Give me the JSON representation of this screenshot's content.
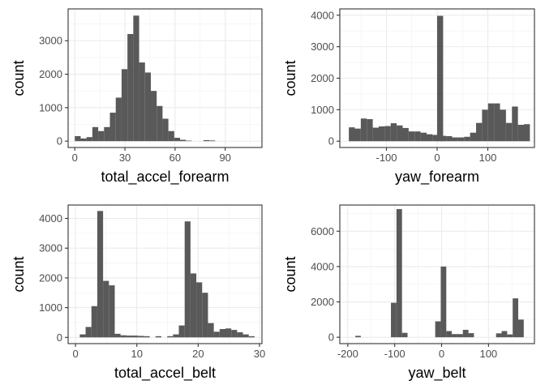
{
  "chart_data": [
    {
      "type": "bar",
      "xlabel": "total_accel_forearm",
      "ylabel": "count",
      "xlim": [
        -4,
        112
      ],
      "ylim": [
        -190,
        3950
      ],
      "xticks": [
        0,
        30,
        60,
        90
      ],
      "xtick_labels": [
        "0",
        "30",
        "60",
        "90"
      ],
      "yticks": [
        0,
        1000,
        2000,
        3000
      ],
      "ytick_labels": [
        "0",
        "1000",
        "2000",
        "3000"
      ],
      "binwidth": 3.5,
      "bins": [
        [
          0,
          150
        ],
        [
          3.5,
          80
        ],
        [
          7,
          120
        ],
        [
          10.5,
          420
        ],
        [
          14,
          300
        ],
        [
          17.5,
          420
        ],
        [
          21,
          850
        ],
        [
          24.5,
          1300
        ],
        [
          28,
          2150
        ],
        [
          31.5,
          3200
        ],
        [
          35,
          3750
        ],
        [
          38.5,
          2350
        ],
        [
          42,
          2050
        ],
        [
          45.5,
          1500
        ],
        [
          49,
          1050
        ],
        [
          52.5,
          670
        ],
        [
          56,
          300
        ],
        [
          59.5,
          100
        ],
        [
          63,
          40
        ],
        [
          66.5,
          15
        ],
        [
          77,
          30
        ],
        [
          80.5,
          20
        ]
      ],
      "grid": true,
      "bar_color": "#595959"
    },
    {
      "type": "bar",
      "xlabel": "yaw_forearm",
      "ylabel": "count",
      "xlim": [
        -192,
        192
      ],
      "ylim": [
        -200,
        4200
      ],
      "xticks": [
        -100,
        0,
        100
      ],
      "xtick_labels": [
        "-100",
        "0",
        "100"
      ],
      "yticks": [
        0,
        1000,
        2000,
        3000,
        4000
      ],
      "ytick_labels": [
        "0",
        "1000",
        "2000",
        "3000",
        "4000"
      ],
      "binwidth": 11.8,
      "bins": [
        [
          -174.2,
          440
        ],
        [
          -162.4,
          400
        ],
        [
          -150.6,
          720
        ],
        [
          -138.8,
          700
        ],
        [
          -127,
          430
        ],
        [
          -115.2,
          470
        ],
        [
          -103.4,
          480
        ],
        [
          -91.6,
          570
        ],
        [
          -79.8,
          500
        ],
        [
          -68,
          420
        ],
        [
          -56.2,
          310
        ],
        [
          -44.4,
          310
        ],
        [
          -32.6,
          270
        ],
        [
          -20.8,
          220
        ],
        [
          -9,
          200
        ],
        [
          0,
          3980
        ],
        [
          6,
          170
        ],
        [
          17.8,
          160
        ],
        [
          29.6,
          120
        ],
        [
          41.4,
          120
        ],
        [
          53.2,
          140
        ],
        [
          65,
          270
        ],
        [
          76.8,
          580
        ],
        [
          88.6,
          1000
        ],
        [
          100.4,
          1200
        ],
        [
          112.2,
          1200
        ],
        [
          124,
          1000
        ],
        [
          135.8,
          580
        ],
        [
          147.6,
          1100
        ],
        [
          159.4,
          520
        ],
        [
          171.2,
          540
        ]
      ],
      "grid": true,
      "bar_color": "#595959"
    },
    {
      "type": "bar",
      "xlabel": "total_accel_belt",
      "ylabel": "count",
      "xlim": [
        -1.2,
        30.4
      ],
      "ylim": [
        -210,
        4450
      ],
      "xticks": [
        0,
        10,
        20,
        30
      ],
      "xtick_labels": [
        "0",
        "10",
        "20",
        "30"
      ],
      "yticks": [
        0,
        1000,
        2000,
        3000,
        4000
      ],
      "ytick_labels": [
        "0",
        "1000",
        "2000",
        "3000",
        "4000"
      ],
      "binwidth": 0.95,
      "bins": [
        [
          0.7,
          100
        ],
        [
          1.65,
          350
        ],
        [
          2.6,
          1050
        ],
        [
          3.55,
          4250
        ],
        [
          4.5,
          1900
        ],
        [
          5.45,
          1750
        ],
        [
          6.4,
          120
        ],
        [
          7.35,
          70
        ],
        [
          8.3,
          60
        ],
        [
          9.25,
          60
        ],
        [
          10.2,
          50
        ],
        [
          11.15,
          40
        ],
        [
          13.05,
          40
        ],
        [
          14.95,
          40
        ],
        [
          15.9,
          100
        ],
        [
          16.85,
          400
        ],
        [
          17.8,
          3900
        ],
        [
          18.75,
          2150
        ],
        [
          19.7,
          1850
        ],
        [
          20.65,
          1500
        ],
        [
          21.6,
          480
        ],
        [
          22.55,
          190
        ],
        [
          23.5,
          280
        ],
        [
          24.45,
          300
        ],
        [
          25.4,
          250
        ],
        [
          26.35,
          170
        ],
        [
          27.3,
          100
        ],
        [
          28.25,
          40
        ]
      ],
      "grid": true,
      "bar_color": "#595959"
    },
    {
      "type": "bar",
      "xlabel": "yaw_belt",
      "ylabel": "count",
      "xlim": [
        -217,
        198
      ],
      "ylim": [
        -360,
        7480
      ],
      "xticks": [
        -200,
        -100,
        0,
        100
      ],
      "xtick_labels": [
        "-200",
        "-100",
        "0",
        "100"
      ],
      "yticks": [
        0,
        2000,
        4000,
        6000
      ],
      "ytick_labels": [
        "0",
        "2000",
        "4000",
        "6000"
      ],
      "binwidth": 11.8,
      "bins": [
        [
          -184,
          80
        ],
        [
          -108,
          1950
        ],
        [
          -96.2,
          7250
        ],
        [
          -84.4,
          250
        ],
        [
          -13.6,
          900
        ],
        [
          -1.8,
          4000
        ],
        [
          10,
          350
        ],
        [
          21.8,
          180
        ],
        [
          33.6,
          180
        ],
        [
          45.4,
          420
        ],
        [
          57.2,
          230
        ],
        [
          116.2,
          220
        ],
        [
          128,
          350
        ],
        [
          139.8,
          160
        ],
        [
          151.6,
          2200
        ],
        [
          163.4,
          1000
        ]
      ],
      "grid": true,
      "bar_color": "#595959"
    }
  ]
}
